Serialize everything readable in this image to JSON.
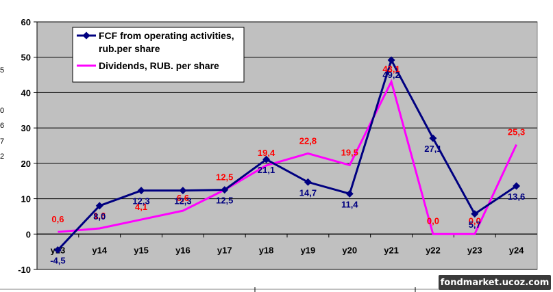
{
  "chart_data": {
    "type": "line",
    "categories": [
      "y13",
      "y14",
      "y15",
      "y16",
      "y17",
      "y18",
      "y19",
      "y20",
      "y21",
      "y22",
      "y23",
      "y24"
    ],
    "ylim": [
      -10,
      60
    ],
    "yticks": [
      -10,
      0,
      10,
      20,
      30,
      40,
      50,
      60
    ],
    "grid": true,
    "legend_position": "top-left",
    "series": [
      {
        "name": "FCF from operating activities, rub.per share",
        "legend_lines": [
          "FCF from operating activities,",
          "rub.per share"
        ],
        "color": "#000080",
        "marker": "diamond",
        "values": [
          -4.5,
          8.0,
          12.3,
          12.3,
          12.5,
          21.1,
          14.7,
          11.4,
          49.2,
          27.1,
          5.7,
          13.6
        ],
        "labels": [
          "-4,5",
          "8,0",
          "12,3",
          "12,3",
          "12,5",
          "21,1",
          "14,7",
          "11,4",
          "49,2",
          "27,1",
          "5,7",
          "13,6"
        ]
      },
      {
        "name": "Dividends, RUB. per share",
        "legend_lines": [
          "Dividends, RUB. per share"
        ],
        "color": "#ff00ff",
        "marker": "none",
        "values": [
          0.6,
          1.6,
          4.1,
          6.6,
          12.5,
          19.4,
          22.8,
          19.5,
          43.1,
          0.0,
          0.0,
          25.3
        ],
        "labels": [
          "0,6",
          "1,6",
          "4,1",
          "6,6",
          "12,5",
          "19,4",
          "22,8",
          "19,5",
          "43,1",
          "0,0",
          "0,0",
          "25,3"
        ]
      }
    ]
  },
  "side_fragments": [
    "5",
    "0",
    "6",
    "7",
    "2"
  ],
  "watermark": "fondmarket.ucoz.com"
}
